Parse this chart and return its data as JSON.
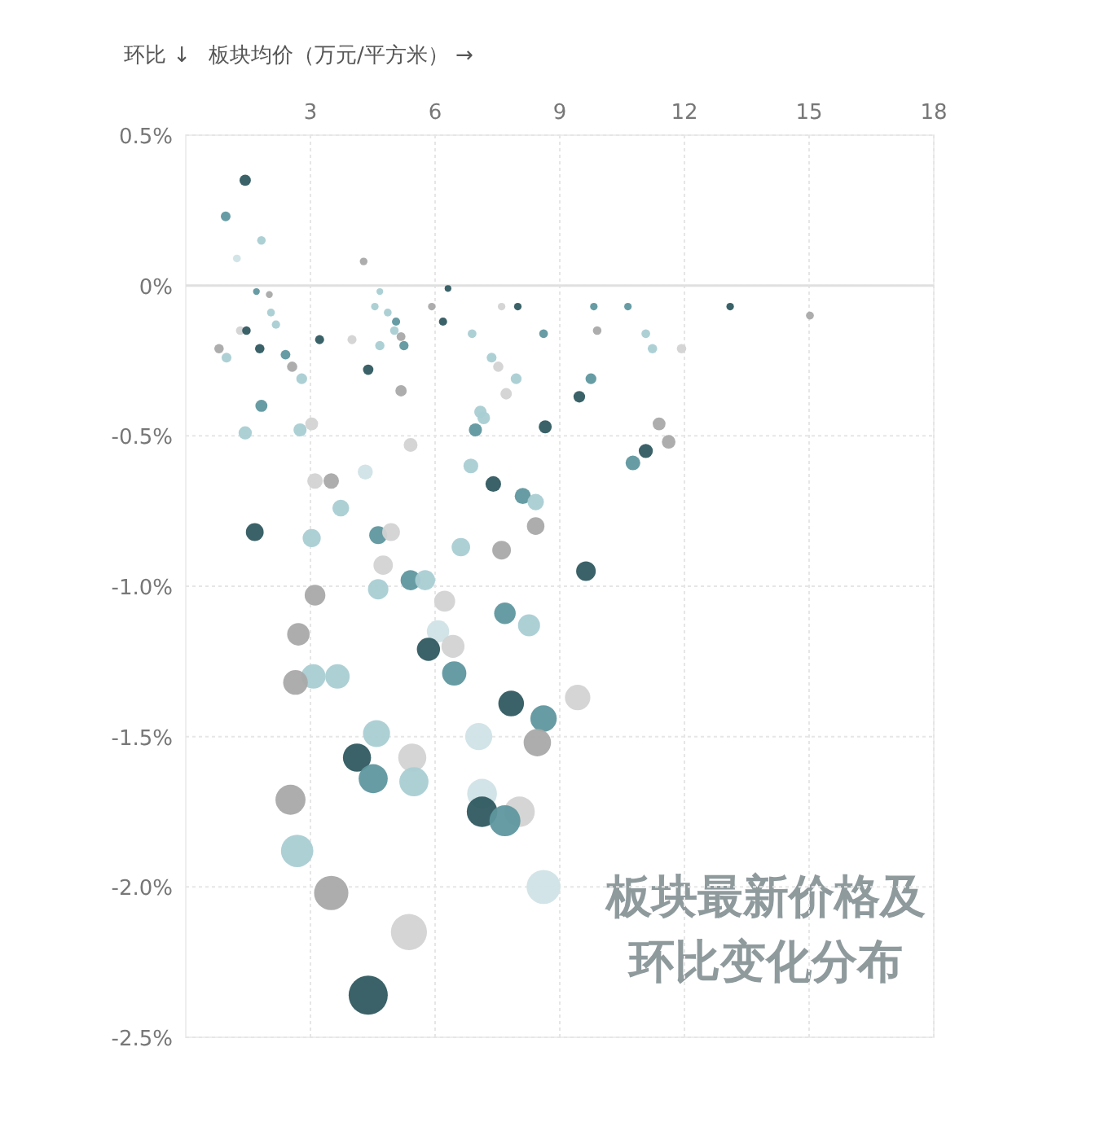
{
  "chart_data": {
    "type": "bubble",
    "title": "板块最新价格及环比变化分布",
    "xlabel": "板块均价（万元/平方米） →",
    "ylabel": "环比 ↓",
    "xlim": [
      0,
      18
    ],
    "xticks": [
      3,
      6,
      9,
      12,
      15,
      18
    ],
    "ylim": [
      -2.5,
      0.5
    ],
    "yticks": [
      {
        "value": 0.5,
        "label": "0.5%"
      },
      {
        "value": 0,
        "label": "0%"
      },
      {
        "value": -0.5,
        "label": "-0.5%"
      },
      {
        "value": -1,
        "label": "-1.0%"
      },
      {
        "value": -1.5,
        "label": "-1.5%"
      },
      {
        "value": -2,
        "label": "-2.0%"
      },
      {
        "value": -2.5,
        "label": "-2.5%"
      }
    ],
    "grid": true,
    "ref_lines": [
      {
        "axis": "y",
        "value": 0,
        "label": null,
        "color": "#e0e0e0"
      }
    ],
    "x": [
      1.43,
      0.96,
      1.82,
      1.23,
      4.28,
      1.7,
      2.01,
      6.31,
      4.67,
      5.92,
      7.99,
      7.6,
      9.82,
      10.64,
      13.1,
      15.02,
      2.05,
      2.17,
      1.31,
      1.46,
      0.8,
      0.98,
      1.78,
      2.4,
      2.56,
      2.79,
      3.22,
      4.0,
      4.55,
      4.86,
      5.06,
      5.02,
      5.25,
      5.18,
      4.67,
      4.39,
      5.18,
      6.19,
      6.89,
      7.36,
      7.52,
      7.95,
      7.71,
      7.09,
      7.17,
      6.97,
      8.65,
      8.61,
      1.82,
      1.43,
      2.75,
      3.03,
      5.41,
      1.66,
      3.11,
      3.5,
      4.32,
      3.73,
      3.03,
      4.63,
      4.94,
      4.75,
      4.63,
      5.41,
      5.76,
      6.23,
      6.62,
      6.86,
      7.4,
      8.11,
      8.42,
      8.42,
      7.6,
      9.75,
      9.47,
      9.9,
      11.07,
      11.23,
      11.93,
      11.39,
      11.62,
      11.07,
      10.76,
      9.63,
      7.68,
      8.26,
      3.11,
      2.71,
      3.07,
      3.65,
      2.64,
      6.07,
      5.84,
      6.43,
      6.46,
      7.83,
      8.61,
      9.43,
      8.46,
      7.05,
      4.59,
      4.12,
      5.45,
      4.51,
      5.49,
      2.52,
      2.68,
      7.13,
      7.13,
      8.03,
      7.68,
      8.61,
      3.5,
      5.37,
      4.39
    ],
    "values": [
      0.35,
      0.23,
      0.15,
      0.09,
      0.08,
      -0.02,
      -0.03,
      -0.01,
      -0.02,
      -0.07,
      -0.07,
      -0.07,
      -0.07,
      -0.07,
      -0.07,
      -0.1,
      -0.09,
      -0.13,
      -0.15,
      -0.15,
      -0.21,
      -0.24,
      -0.21,
      -0.23,
      -0.27,
      -0.31,
      -0.18,
      -0.18,
      -0.07,
      -0.09,
      -0.12,
      -0.15,
      -0.2,
      -0.17,
      -0.2,
      -0.28,
      -0.35,
      -0.12,
      -0.16,
      -0.24,
      -0.27,
      -0.31,
      -0.36,
      -0.42,
      -0.44,
      -0.48,
      -0.47,
      -0.16,
      -0.4,
      -0.49,
      -0.48,
      -0.46,
      -0.53,
      -0.82,
      -0.65,
      -0.65,
      -0.62,
      -0.74,
      -0.84,
      -0.83,
      -0.82,
      -0.93,
      -1.01,
      -0.98,
      -0.98,
      -1.05,
      -0.87,
      -0.6,
      -0.66,
      -0.7,
      -0.72,
      -0.8,
      -0.88,
      -0.31,
      -0.37,
      -0.15,
      -0.16,
      -0.21,
      -0.21,
      -0.46,
      -0.52,
      -0.55,
      -0.59,
      -0.95,
      -1.09,
      -1.13,
      -1.03,
      -1.16,
      -1.3,
      -1.3,
      -1.32,
      -1.15,
      -1.21,
      -1.2,
      -1.29,
      -1.39,
      -1.44,
      -1.37,
      -1.52,
      -1.5,
      -1.49,
      -1.57,
      -1.57,
      -1.64,
      -1.65,
      -1.71,
      -1.88,
      -1.69,
      -1.75,
      -1.75,
      -1.78,
      -2.0,
      -2.02,
      -2.15,
      -2.36
    ],
    "sizes": [
      0.084,
      0.062,
      0.048,
      0.04,
      0.039,
      0.03,
      0.031,
      0.029,
      0.03,
      0.037,
      0.037,
      0.037,
      0.037,
      0.037,
      0.037,
      0.041,
      0.04,
      0.045,
      0.048,
      0.048,
      0.058,
      0.063,
      0.058,
      0.062,
      0.069,
      0.076,
      0.053,
      0.053,
      0.037,
      0.04,
      0.044,
      0.048,
      0.056,
      0.051,
      0.056,
      0.071,
      0.084,
      0.044,
      0.05,
      0.063,
      0.069,
      0.076,
      0.086,
      0.099,
      0.104,
      0.113,
      0.11,
      0.05,
      0.095,
      0.115,
      0.113,
      0.108,
      0.125,
      0.207,
      0.157,
      0.157,
      0.148,
      0.183,
      0.214,
      0.211,
      0.207,
      0.245,
      0.273,
      0.262,
      0.262,
      0.288,
      0.224,
      0.143,
      0.159,
      0.171,
      0.177,
      0.201,
      0.228,
      0.076,
      0.088,
      0.048,
      0.05,
      0.058,
      0.058,
      0.108,
      0.122,
      0.13,
      0.141,
      0.251,
      0.303,
      0.319,
      0.281,
      0.331,
      0.39,
      0.39,
      0.398,
      0.327,
      0.351,
      0.347,
      0.386,
      0.43,
      0.454,
      0.421,
      0.492,
      0.482,
      0.478,
      0.517,
      0.517,
      0.553,
      0.558,
      0.59,
      0.686,
      0.58,
      0.612,
      0.612,
      0.629,
      0.757,
      0.769,
      0.852,
      1
    ],
    "colors": [
      "#2f5a60",
      "#5f979f",
      "#a9cdd3",
      "#d0e3e6",
      "#a9a9a9",
      "#5f979f",
      "#a9a9a9",
      "#2f5a60",
      "#a9cdd3",
      "#a9a9a9",
      "#2f5a60",
      "#d3d3d3",
      "#5f979f",
      "#5f979f",
      "#2f5a60",
      "#a9a9a9",
      "#a9cdd3",
      "#a9cdd3",
      "#d3d3d3",
      "#2f5a60",
      "#a9a9a9",
      "#a9cdd3",
      "#2f5a60",
      "#5f979f",
      "#a9a9a9",
      "#a9cdd3",
      "#2f5a60",
      "#d3d3d3",
      "#a9cdd3",
      "#a9cdd3",
      "#5f979f",
      "#a9cdd3",
      "#5f979f",
      "#a9a9a9",
      "#a9cdd3",
      "#2f5a60",
      "#a9a9a9",
      "#2f5a60",
      "#a9cdd3",
      "#a9cdd3",
      "#d3d3d3",
      "#a9cdd3",
      "#d3d3d3",
      "#a9cdd3",
      "#a9cdd3",
      "#5f979f",
      "#2f5a60",
      "#5f979f",
      "#5f979f",
      "#a9cdd3",
      "#a9cdd3",
      "#d3d3d3",
      "#d3d3d3",
      "#2f5a60",
      "#d3d3d3",
      "#a9a9a9",
      "#d0e3e6",
      "#a9cdd3",
      "#a9cdd3",
      "#5f979f",
      "#d3d3d3",
      "#d3d3d3",
      "#a9cdd3",
      "#5f979f",
      "#a9cdd3",
      "#d3d3d3",
      "#a9cdd3",
      "#a9cdd3",
      "#2f5a60",
      "#5f979f",
      "#a9cdd3",
      "#a9a9a9",
      "#a9a9a9",
      "#5f979f",
      "#2f5a60",
      "#a9a9a9",
      "#a9cdd3",
      "#a9cdd3",
      "#d3d3d3",
      "#a9a9a9",
      "#a9a9a9",
      "#2f5a60",
      "#5f979f",
      "#2f5a60",
      "#5f979f",
      "#a9cdd3",
      "#a9a9a9",
      "#a9a9a9",
      "#a9cdd3",
      "#a9cdd3",
      "#a9a9a9",
      "#d0e3e6",
      "#2f5a60",
      "#d3d3d3",
      "#5f979f",
      "#2f5a60",
      "#5f979f",
      "#d3d3d3",
      "#a9a9a9",
      "#d0e3e6",
      "#a9cdd3",
      "#2f5a60",
      "#d3d3d3",
      "#5f979f",
      "#a9cdd3",
      "#a9a9a9",
      "#a9cdd3",
      "#d0e3e6",
      "#2f5a60",
      "#d3d3d3",
      "#5f979f",
      "#d0e3e6",
      "#a9a9a9",
      "#d3d3d3",
      "#2f5a60"
    ]
  }
}
